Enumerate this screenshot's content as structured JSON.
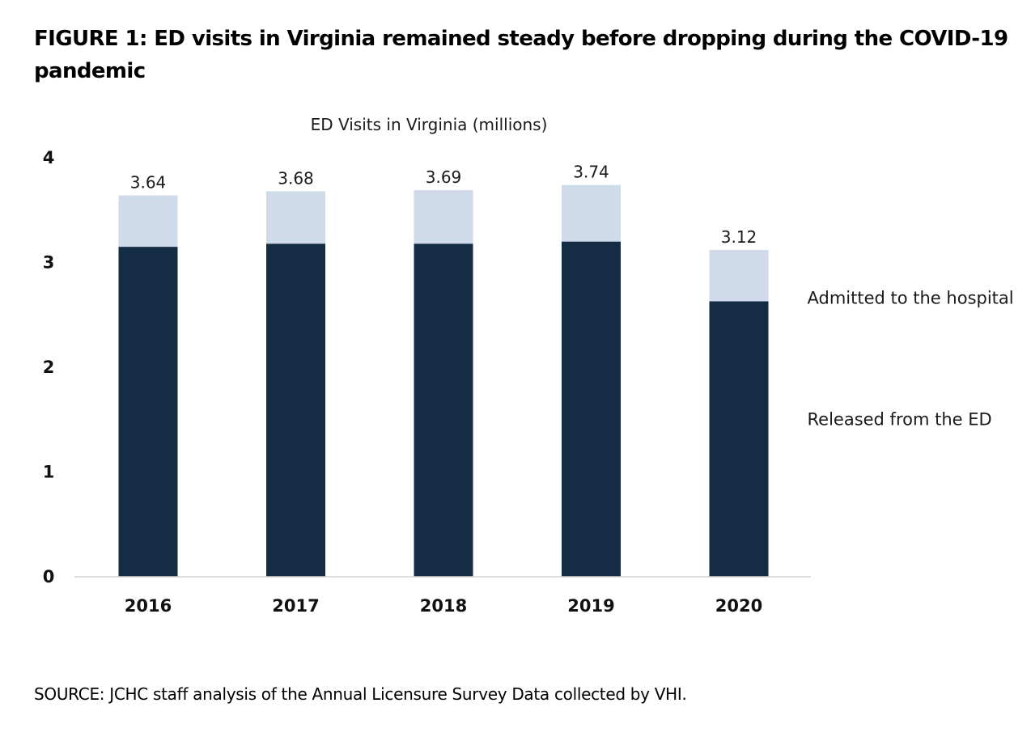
{
  "figure": {
    "title": "FIGURE 1: ED visits in Virginia remained steady before dropping during the COVID-19 pandemic",
    "source": "SOURCE: JCHC staff analysis of the Annual Licensure Survey Data collected by VHI."
  },
  "chart_data": {
    "type": "bar",
    "stacked": true,
    "title": "ED Visits in Virginia (millions)",
    "xlabel": "",
    "ylabel": "",
    "ylim": [
      0,
      4
    ],
    "yticks": [
      0,
      1,
      2,
      3,
      4
    ],
    "grid": false,
    "legend_position": "right (inline labels beside last bar)",
    "categories": [
      "2016",
      "2017",
      "2018",
      "2019",
      "2020"
    ],
    "series": [
      {
        "name": "Released from the ED",
        "values": [
          3.15,
          3.18,
          3.18,
          3.2,
          2.63
        ],
        "color": "#152d44"
      },
      {
        "name": "Admitted to the hospital",
        "values": [
          0.49,
          0.5,
          0.51,
          0.54,
          0.49
        ],
        "color": "#cfdbea"
      }
    ],
    "totals": [
      "3.64",
      "3.68",
      "3.69",
      "3.74",
      "3.12"
    ]
  }
}
